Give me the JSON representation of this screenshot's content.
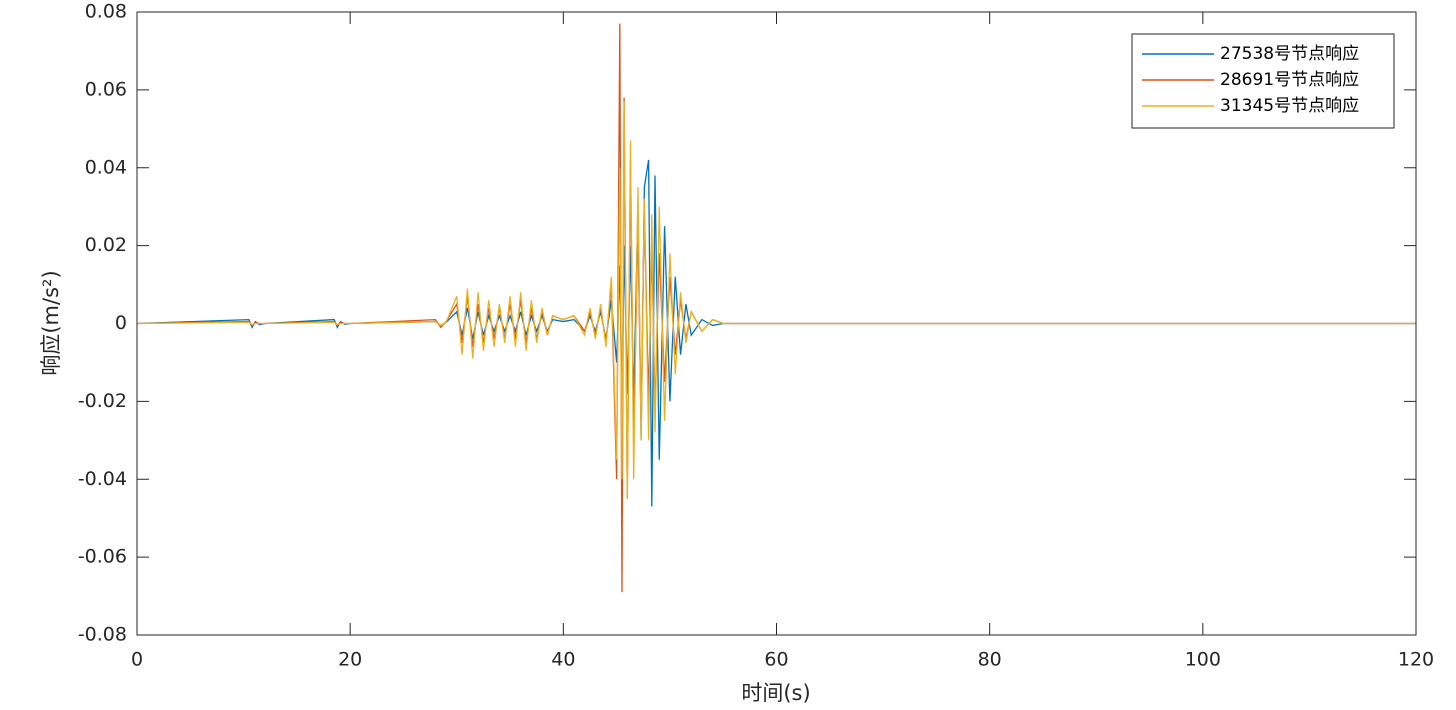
{
  "chart_data": {
    "type": "line",
    "xlabel": "时间(s)",
    "ylabel": "响应(m/s²)",
    "x": [
      0,
      10.5,
      10.8,
      11.1,
      11.5,
      12,
      18.5,
      18.8,
      19.1,
      19.5,
      20,
      28,
      28.5,
      29,
      30,
      30.5,
      31,
      31.5,
      32,
      32.5,
      33,
      33.5,
      34,
      34.5,
      35,
      35.5,
      36,
      36.5,
      37,
      37.5,
      38,
      38.5,
      39,
      40,
      41,
      42,
      42.5,
      43,
      43.5,
      44,
      44.5,
      45,
      45.3,
      45.5,
      45.7,
      46,
      46.3,
      46.6,
      47,
      47.3,
      47.6,
      48,
      48.3,
      48.6,
      49,
      49.5,
      50,
      50.5,
      51,
      51.5,
      52,
      53,
      54,
      55,
      60,
      120
    ],
    "series": [
      {
        "name": "27538号节点响应",
        "color": "#0072bd",
        "values": [
          0,
          0.001,
          -0.001,
          0.0005,
          -0.0003,
          0,
          0.001,
          -0.001,
          0.0005,
          -0.0002,
          0,
          0.0005,
          -0.0005,
          0.0003,
          0.003,
          -0.003,
          0.004,
          -0.004,
          0.003,
          -0.003,
          0.002,
          -0.002,
          0.002,
          -0.002,
          0.002,
          -0.002,
          0.003,
          -0.003,
          0.002,
          -0.002,
          0.002,
          -0.002,
          0.001,
          0.0005,
          0.001,
          -0.002,
          0.002,
          -0.002,
          0.003,
          -0.004,
          0.006,
          -0.01,
          0.015,
          -0.02,
          0.02,
          -0.018,
          0.02,
          -0.02,
          0.03,
          -0.03,
          0.035,
          0.042,
          -0.047,
          0.038,
          -0.035,
          0.025,
          -0.02,
          0.012,
          -0.008,
          0.005,
          -0.003,
          0.001,
          -0.0005,
          0,
          0,
          0
        ]
      },
      {
        "name": "28691号节点响应",
        "color": "#d95319",
        "values": [
          0,
          0.0005,
          -0.0005,
          0.0003,
          0,
          0,
          0.0005,
          -0.0005,
          0.0003,
          0,
          0,
          0.001,
          -0.001,
          0.0005,
          0.005,
          -0.005,
          0.007,
          -0.006,
          0.005,
          -0.005,
          0.004,
          -0.004,
          0.004,
          -0.004,
          0.005,
          -0.004,
          0.006,
          -0.005,
          0.004,
          -0.004,
          0.003,
          -0.003,
          0.002,
          0.001,
          0.002,
          -0.002,
          0.003,
          -0.003,
          0.004,
          -0.005,
          0.01,
          -0.04,
          0.077,
          -0.069,
          0.058,
          -0.045,
          0.042,
          -0.03,
          0.025,
          -0.025,
          0.03,
          -0.02,
          0.02,
          -0.022,
          0.018,
          -0.015,
          0.012,
          -0.008,
          0.006,
          -0.004,
          0.003,
          -0.002,
          0.001,
          0,
          0,
          0
        ]
      },
      {
        "name": "31345号节点响应",
        "color": "#edb120",
        "values": [
          0,
          0.0003,
          -0.0003,
          0,
          0,
          0,
          0.0003,
          -0.0003,
          0,
          0,
          0,
          0.0005,
          -0.0005,
          0.0003,
          0.007,
          -0.008,
          0.009,
          -0.009,
          0.008,
          -0.007,
          0.006,
          -0.006,
          0.005,
          -0.005,
          0.007,
          -0.006,
          0.008,
          -0.007,
          0.006,
          -0.005,
          0.004,
          -0.003,
          0.002,
          0.001,
          0.002,
          -0.003,
          0.004,
          -0.004,
          0.005,
          -0.006,
          0.012,
          -0.035,
          0.04,
          -0.04,
          0.057,
          -0.045,
          0.047,
          -0.04,
          0.035,
          -0.03,
          0.032,
          -0.03,
          0.028,
          -0.028,
          0.03,
          -0.025,
          0.018,
          -0.013,
          0.008,
          -0.005,
          0.003,
          -0.002,
          0.001,
          0,
          0,
          0
        ]
      }
    ],
    "xlim": [
      0,
      120
    ],
    "xticks": [
      0,
      20,
      40,
      60,
      80,
      100,
      120
    ],
    "ylim": [
      -0.08,
      0.08
    ],
    "yticks": [
      -0.08,
      -0.06,
      -0.04,
      -0.02,
      0,
      0.02,
      0.04,
      0.06,
      0.08
    ],
    "grid": false,
    "legend": "top-right"
  }
}
